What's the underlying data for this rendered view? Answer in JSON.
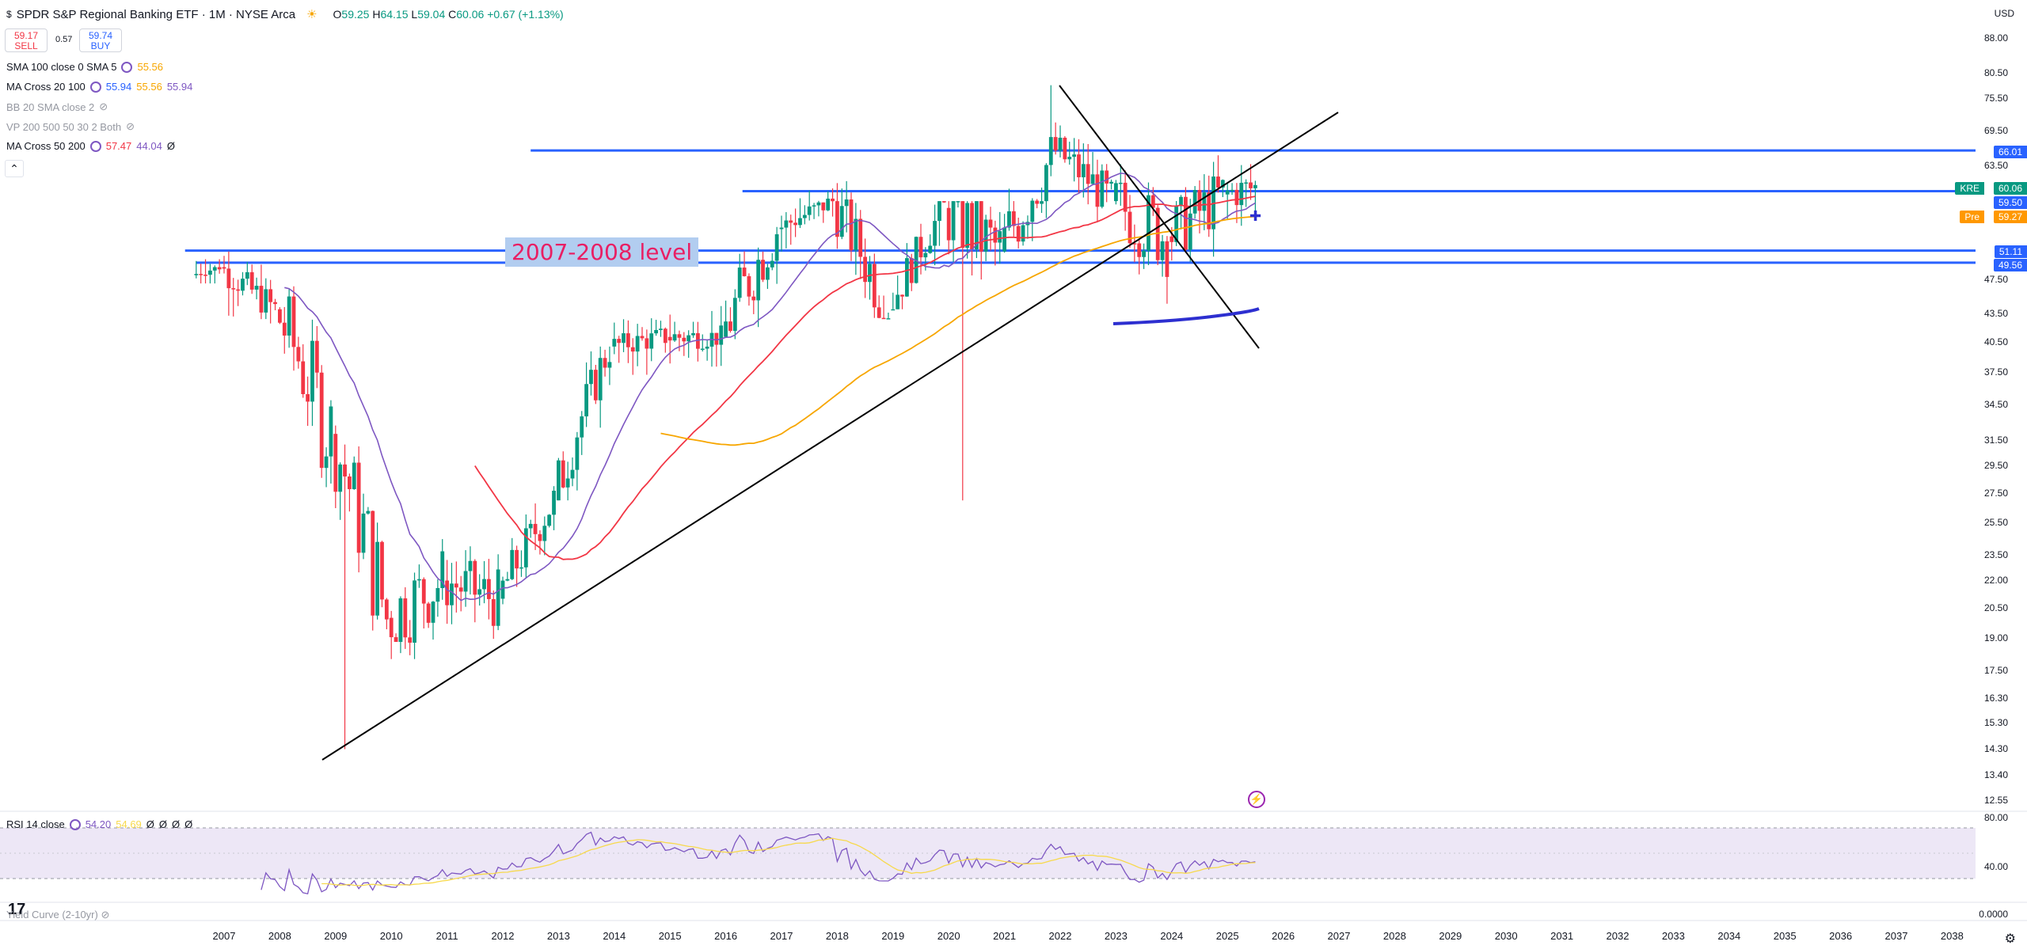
{
  "header": {
    "symbol_title": "SPDR S&P Regional Banking ETF · 1M · NYSE Arca",
    "currency_symbol": "$",
    "ohlc": {
      "o_label": "O",
      "o": "59.25",
      "h_label": "H",
      "h": "64.15",
      "l_label": "L",
      "l": "59.04",
      "c_label": "C",
      "c": "60.06",
      "change": "+0.67 (+1.13%)"
    }
  },
  "trade": {
    "sell_price": "59.17",
    "sell_label": "SELL",
    "spread": "0.57",
    "buy_price": "59.74",
    "buy_label": "BUY"
  },
  "indicators": [
    {
      "name": "SMA 100 close 0 SMA 5",
      "values": [
        "55.56"
      ],
      "colors": [
        "#f7a600"
      ]
    },
    {
      "name": "MA Cross 20 100",
      "values": [
        "55.94",
        "55.56",
        "55.94"
      ],
      "colors": [
        "#2962ff",
        "#f7a600",
        "#7e57c2"
      ]
    },
    {
      "name": "BB 20 SMA close 2",
      "values": [],
      "hidden": true
    },
    {
      "name": "VP 200 500 50 30 2 Both",
      "values": [],
      "hidden": true
    },
    {
      "name": "MA Cross 50 200",
      "values": [
        "57.47",
        "44.04",
        "Ø"
      ],
      "colors": [
        "#f23645",
        "#7e57c2",
        "#131722"
      ]
    }
  ],
  "currency": "USD",
  "price_axis": [
    "88.00",
    "80.50",
    "75.50",
    "69.50",
    "63.50",
    "47.50",
    "43.50",
    "40.50",
    "37.50",
    "34.50",
    "31.50",
    "29.50",
    "27.50",
    "25.50",
    "23.50",
    "22.00",
    "20.50",
    "19.00",
    "17.50",
    "16.30",
    "15.30",
    "14.30",
    "13.40",
    "12.55"
  ],
  "price_tags": [
    {
      "label": "66.01",
      "color": "#2962ff"
    },
    {
      "symbol": "KRE",
      "label": "60.06",
      "color": "#089981"
    },
    {
      "label": "59.50",
      "color": "#2962ff"
    },
    {
      "symbol": "Pre",
      "label": "59.27",
      "color": "#ff9800"
    },
    {
      "label": "51.11",
      "color": "#2962ff"
    },
    {
      "label": "49.56",
      "color": "#2962ff"
    }
  ],
  "annotation": "2007-2008 level",
  "time_axis": [
    "2007",
    "2008",
    "2009",
    "2010",
    "2011",
    "2012",
    "2013",
    "2014",
    "2015",
    "2016",
    "2017",
    "2018",
    "2019",
    "2020",
    "2021",
    "2022",
    "2023",
    "2024",
    "2025",
    "2026",
    "2027",
    "2028",
    "2029",
    "2030",
    "2031",
    "2032",
    "2033",
    "2034",
    "2035",
    "2036",
    "2037",
    "2038"
  ],
  "rsi": {
    "name": "RSI 14 close",
    "values": [
      "54.20",
      "54.69",
      "Ø",
      "Ø",
      "Ø",
      "Ø"
    ],
    "axis": [
      "80.00",
      "40.00"
    ]
  },
  "yield": {
    "name": "Yield Curve (2-10yr)",
    "axis": "0.0000"
  },
  "colors": {
    "bull": "#089981",
    "bear": "#f23645",
    "hline": "#2962ff",
    "ma20": "#7e57c2",
    "ma50": "#f23645",
    "ma100": "#f7a600",
    "trend": "#000000"
  },
  "chart_data": {
    "type": "candlestick",
    "interval": "1M",
    "log_scale": true,
    "x_range": [
      "2006-07",
      "2038-06"
    ],
    "y_range": [
      12.55,
      88.0
    ],
    "ohlc_yearly_approx": [
      {
        "year": 2006,
        "o": 48,
        "h": 50,
        "l": 47,
        "c": 49
      },
      {
        "year": 2007,
        "o": 49,
        "h": 51,
        "l": 40,
        "c": 44
      },
      {
        "year": 2008,
        "o": 44,
        "h": 50,
        "l": 22,
        "c": 32
      },
      {
        "year": 2009,
        "o": 32,
        "h": 34,
        "l": 14.3,
        "c": 20
      },
      {
        "year": 2010,
        "o": 20,
        "h": 30,
        "l": 18,
        "c": 22
      },
      {
        "year": 2011,
        "o": 22,
        "h": 28,
        "l": 18.5,
        "c": 21
      },
      {
        "year": 2012,
        "o": 21,
        "h": 28,
        "l": 20,
        "c": 27
      },
      {
        "year": 2013,
        "o": 27,
        "h": 40,
        "l": 27,
        "c": 40
      },
      {
        "year": 2014,
        "o": 40,
        "h": 43,
        "l": 36,
        "c": 41
      },
      {
        "year": 2015,
        "o": 41,
        "h": 45,
        "l": 38,
        "c": 41
      },
      {
        "year": 2016,
        "o": 41,
        "h": 55,
        "l": 32,
        "c": 54
      },
      {
        "year": 2017,
        "o": 54,
        "h": 60,
        "l": 51,
        "c": 58
      },
      {
        "year": 2018,
        "o": 58,
        "h": 66,
        "l": 43,
        "c": 44
      },
      {
        "year": 2019,
        "o": 44,
        "h": 58,
        "l": 44,
        "c": 57
      },
      {
        "year": 2020,
        "o": 57,
        "h": 58,
        "l": 27,
        "c": 51
      },
      {
        "year": 2021,
        "o": 51,
        "h": 78,
        "l": 48,
        "c": 66
      },
      {
        "year": 2022,
        "o": 66,
        "h": 75,
        "l": 55,
        "c": 58
      },
      {
        "year": 2023,
        "o": 58,
        "h": 65,
        "l": 35,
        "c": 53
      },
      {
        "year": 2024,
        "o": 53,
        "h": 70,
        "l": 45,
        "c": 59
      },
      {
        "year": 2025,
        "o": 59,
        "h": 64.15,
        "l": 48,
        "c": 60.06
      }
    ],
    "horizontal_levels": [
      66.01,
      59.5,
      51.11,
      49.56
    ],
    "rsi_range": [
      20,
      90
    ]
  }
}
